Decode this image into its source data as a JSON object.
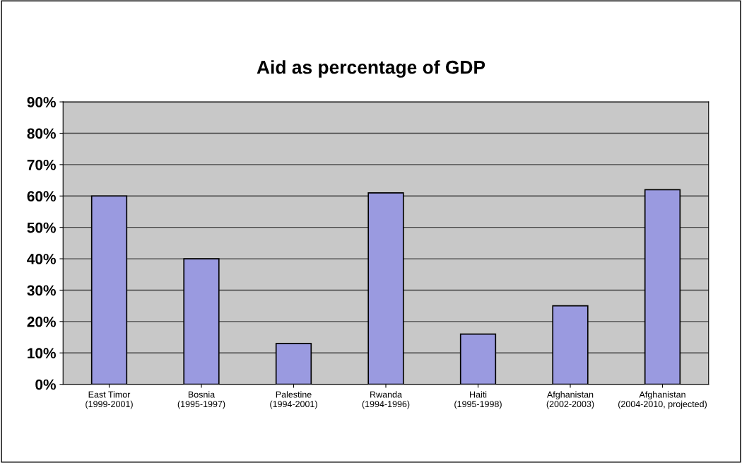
{
  "chart_data": {
    "type": "bar",
    "title": "Aid as percentage of GDP",
    "categories": [
      "East Timor\n(1999-2001)",
      "Bosnia\n(1995-1997)",
      "Palestine\n(1994-2001)",
      "Rwanda\n(1994-1996)",
      "Haiti\n(1995-1998)",
      "Afghanistan\n(2002-2003)",
      "Afghanistan\n(2004-2010, projected)"
    ],
    "values": [
      60,
      40,
      13,
      61,
      16,
      25,
      62
    ],
    "color": "#9a9ae0",
    "ylim": [
      0,
      90
    ],
    "yticks": [
      {
        "value": 0,
        "label": "0%"
      },
      {
        "value": 10,
        "label": "10%"
      },
      {
        "value": 20,
        "label": "20%"
      },
      {
        "value": 30,
        "label": "30%"
      },
      {
        "value": 40,
        "label": "40%"
      },
      {
        "value": 50,
        "label": "50%"
      },
      {
        "value": 60,
        "label": "60%"
      },
      {
        "value": 70,
        "label": "70%"
      },
      {
        "value": 80,
        "label": "80%"
      },
      {
        "value": 90,
        "label": "90%"
      }
    ],
    "grid": "y"
  }
}
